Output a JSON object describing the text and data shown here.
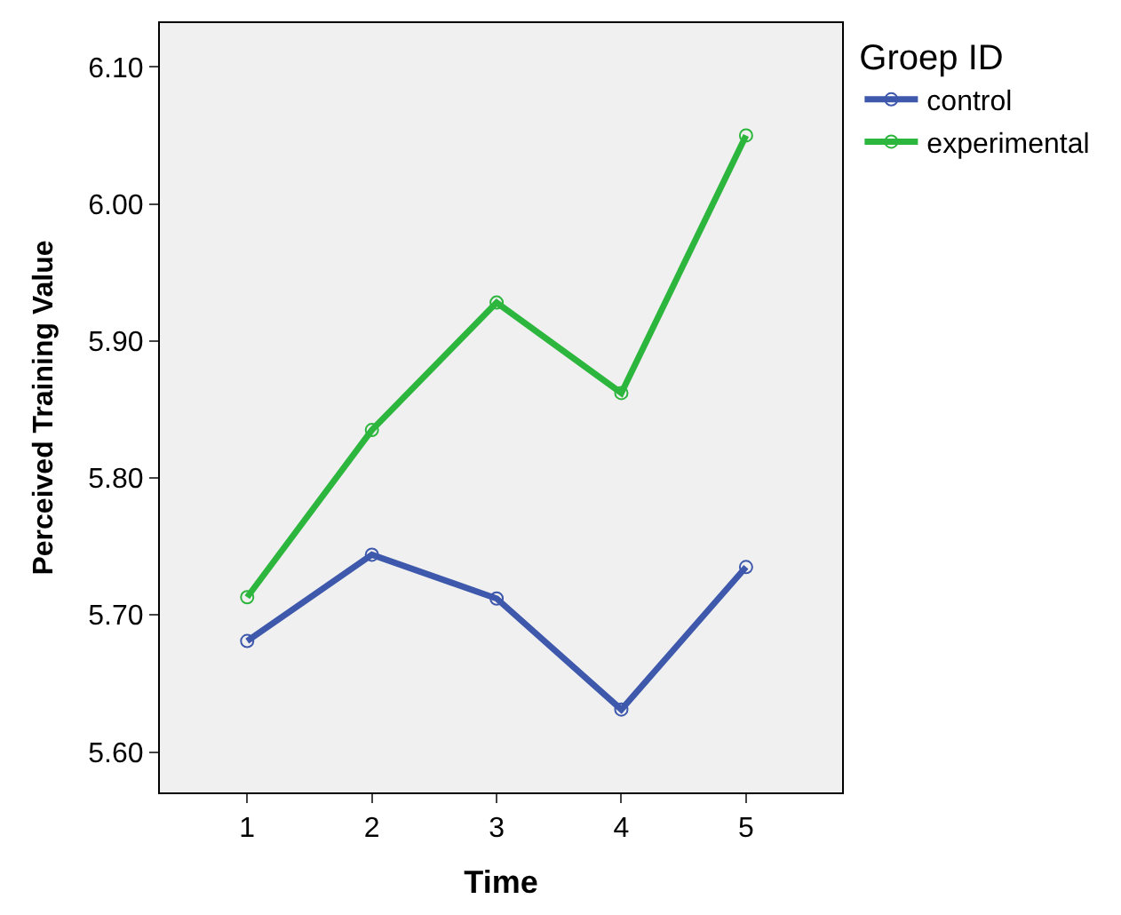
{
  "chart_data": {
    "type": "line",
    "xlabel": "Time",
    "ylabel": "Perceived Training Value",
    "legend_title": "Groep ID",
    "x": [
      1,
      2,
      3,
      4,
      5
    ],
    "series": [
      {
        "name": "control",
        "color": "#3e58ac",
        "values": [
          5.681,
          5.744,
          5.712,
          5.631,
          5.735
        ]
      },
      {
        "name": "experimental",
        "color": "#2db63d",
        "values": [
          5.713,
          5.835,
          5.928,
          5.862,
          6.05
        ]
      }
    ],
    "xlim": [
      0.3,
      5.77
    ],
    "xticks": [
      1,
      2,
      3,
      4,
      5
    ],
    "ylim": [
      5.5705,
      6.132
    ],
    "yticks": [
      {
        "value": 5.6,
        "label": "5.60"
      },
      {
        "value": 5.7,
        "label": "5.70"
      },
      {
        "value": 5.8,
        "label": "5.80"
      },
      {
        "value": 5.9,
        "label": "5.90"
      },
      {
        "value": 6.0,
        "label": "6.00"
      },
      {
        "value": 6.1,
        "label": "6.10"
      }
    ],
    "grid": false,
    "legend": "top right",
    "marker": "circle",
    "line_style": "solid"
  }
}
